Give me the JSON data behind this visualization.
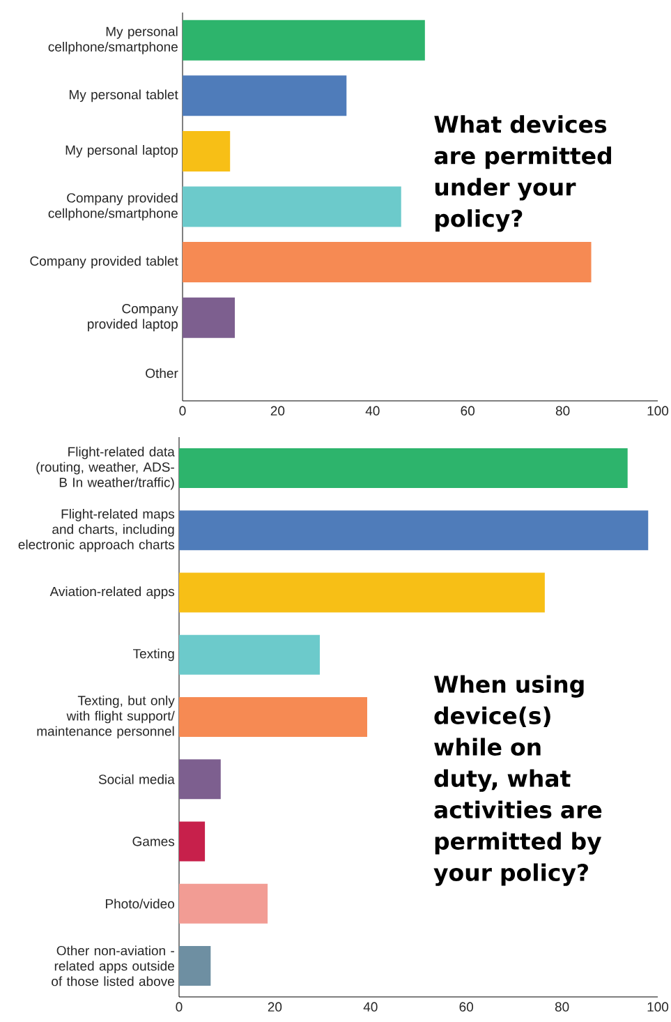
{
  "chart_data": [
    {
      "type": "bar",
      "orientation": "horizontal",
      "title": "What devices are permitted under your policy?",
      "categories": [
        "My personal cellphone/smartphone",
        "My personal tablet",
        "My personal laptop",
        "Company provided cellphone/smartphone",
        "Company provided tablet",
        "Company provided laptop",
        "Other"
      ],
      "values": [
        51,
        34.5,
        10,
        46,
        86,
        11,
        0
      ],
      "colors": [
        "#2db46c",
        "#4f7cba",
        "#f7bf16",
        "#6ccacb",
        "#f68a53",
        "#7d5f8f",
        "#7d5f8f"
      ],
      "xlim": [
        0,
        100
      ],
      "xticks": [
        0,
        20,
        40,
        60,
        80,
        100
      ]
    },
    {
      "type": "bar",
      "orientation": "horizontal",
      "title": "When using device(s) while on duty, what activities are permitted by your policy?",
      "categories": [
        "Flight-related data (routing, weather, ADS-B In weather/traffic)",
        "Flight-related maps and charts, including electronic approach charts",
        "Aviation-related apps",
        "Texting",
        "Texting, but only with flight support/ maintenance personnel",
        "Social media",
        "Games",
        "Photo/video",
        "Other non-aviation -related apps outside of those listed above"
      ],
      "values": [
        93.7,
        98,
        76.4,
        29.4,
        39.3,
        8.7,
        5.4,
        18.5,
        6.6
      ],
      "colors": [
        "#2db46c",
        "#4f7cba",
        "#f7bf16",
        "#6ccacb",
        "#f68a53",
        "#7d5f8f",
        "#c7204b",
        "#f29c94",
        "#6e8fa2"
      ],
      "xlim": [
        0,
        100
      ],
      "xticks": [
        0,
        20,
        40,
        60,
        80,
        100
      ]
    }
  ]
}
